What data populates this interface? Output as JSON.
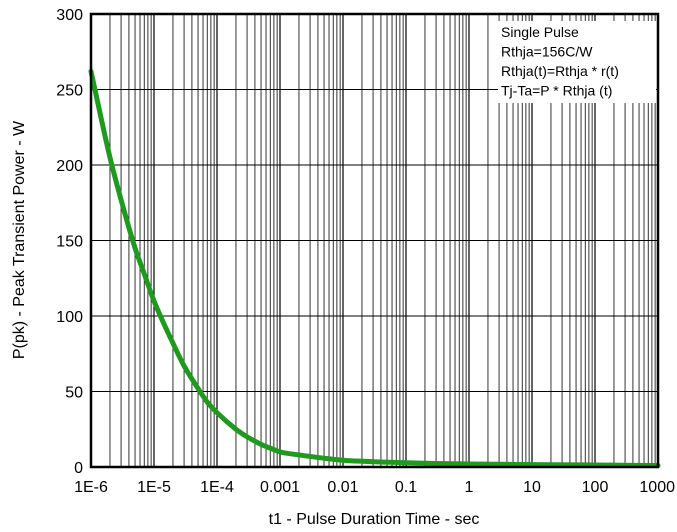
{
  "chart_data": {
    "type": "line",
    "title": "",
    "xlabel": "t1 - Pulse Duration Time - sec",
    "ylabel": "P(pk) - Peak Transient Power - W",
    "x_scale": "log",
    "xlim": [
      1e-06,
      1000
    ],
    "ylim": [
      0,
      300
    ],
    "grid": true,
    "x_ticks": [
      "1E-6",
      "1E-5",
      "1E-4",
      "0.001",
      "0.01",
      "0.1",
      "1",
      "10",
      "100",
      "1000"
    ],
    "y_ticks": [
      "0",
      "50",
      "100",
      "150",
      "200",
      "250",
      "300"
    ],
    "annotations": [
      "Single Pulse",
      "Rthja=156C/W",
      "Rthja(t)=Rthja * r(t)",
      "Tj-Ta=P * Rthja (t)"
    ],
    "annotation_placement": "top-right",
    "series": [
      {
        "color": "#1f9a1f",
        "x": [
          1e-06,
          2e-06,
          3e-06,
          5e-06,
          7e-06,
          1e-05,
          2e-05,
          3e-05,
          5e-05,
          7e-05,
          0.0001,
          0.0002,
          0.0003,
          0.0005,
          0.0007,
          0.001,
          0.002,
          0.003,
          0.005,
          0.01,
          0.02,
          0.05,
          0.1,
          0.3,
          1,
          3,
          10,
          100,
          1000
        ],
        "y": [
          262,
          205,
          177,
          145,
          128,
          110,
          82,
          67,
          52,
          43,
          36,
          25,
          20,
          15,
          12.5,
          10,
          8,
          7,
          5.8,
          4.5,
          3.8,
          3.2,
          2.8,
          2.3,
          2,
          1.8,
          1.6,
          1.3,
          1
        ]
      }
    ]
  }
}
